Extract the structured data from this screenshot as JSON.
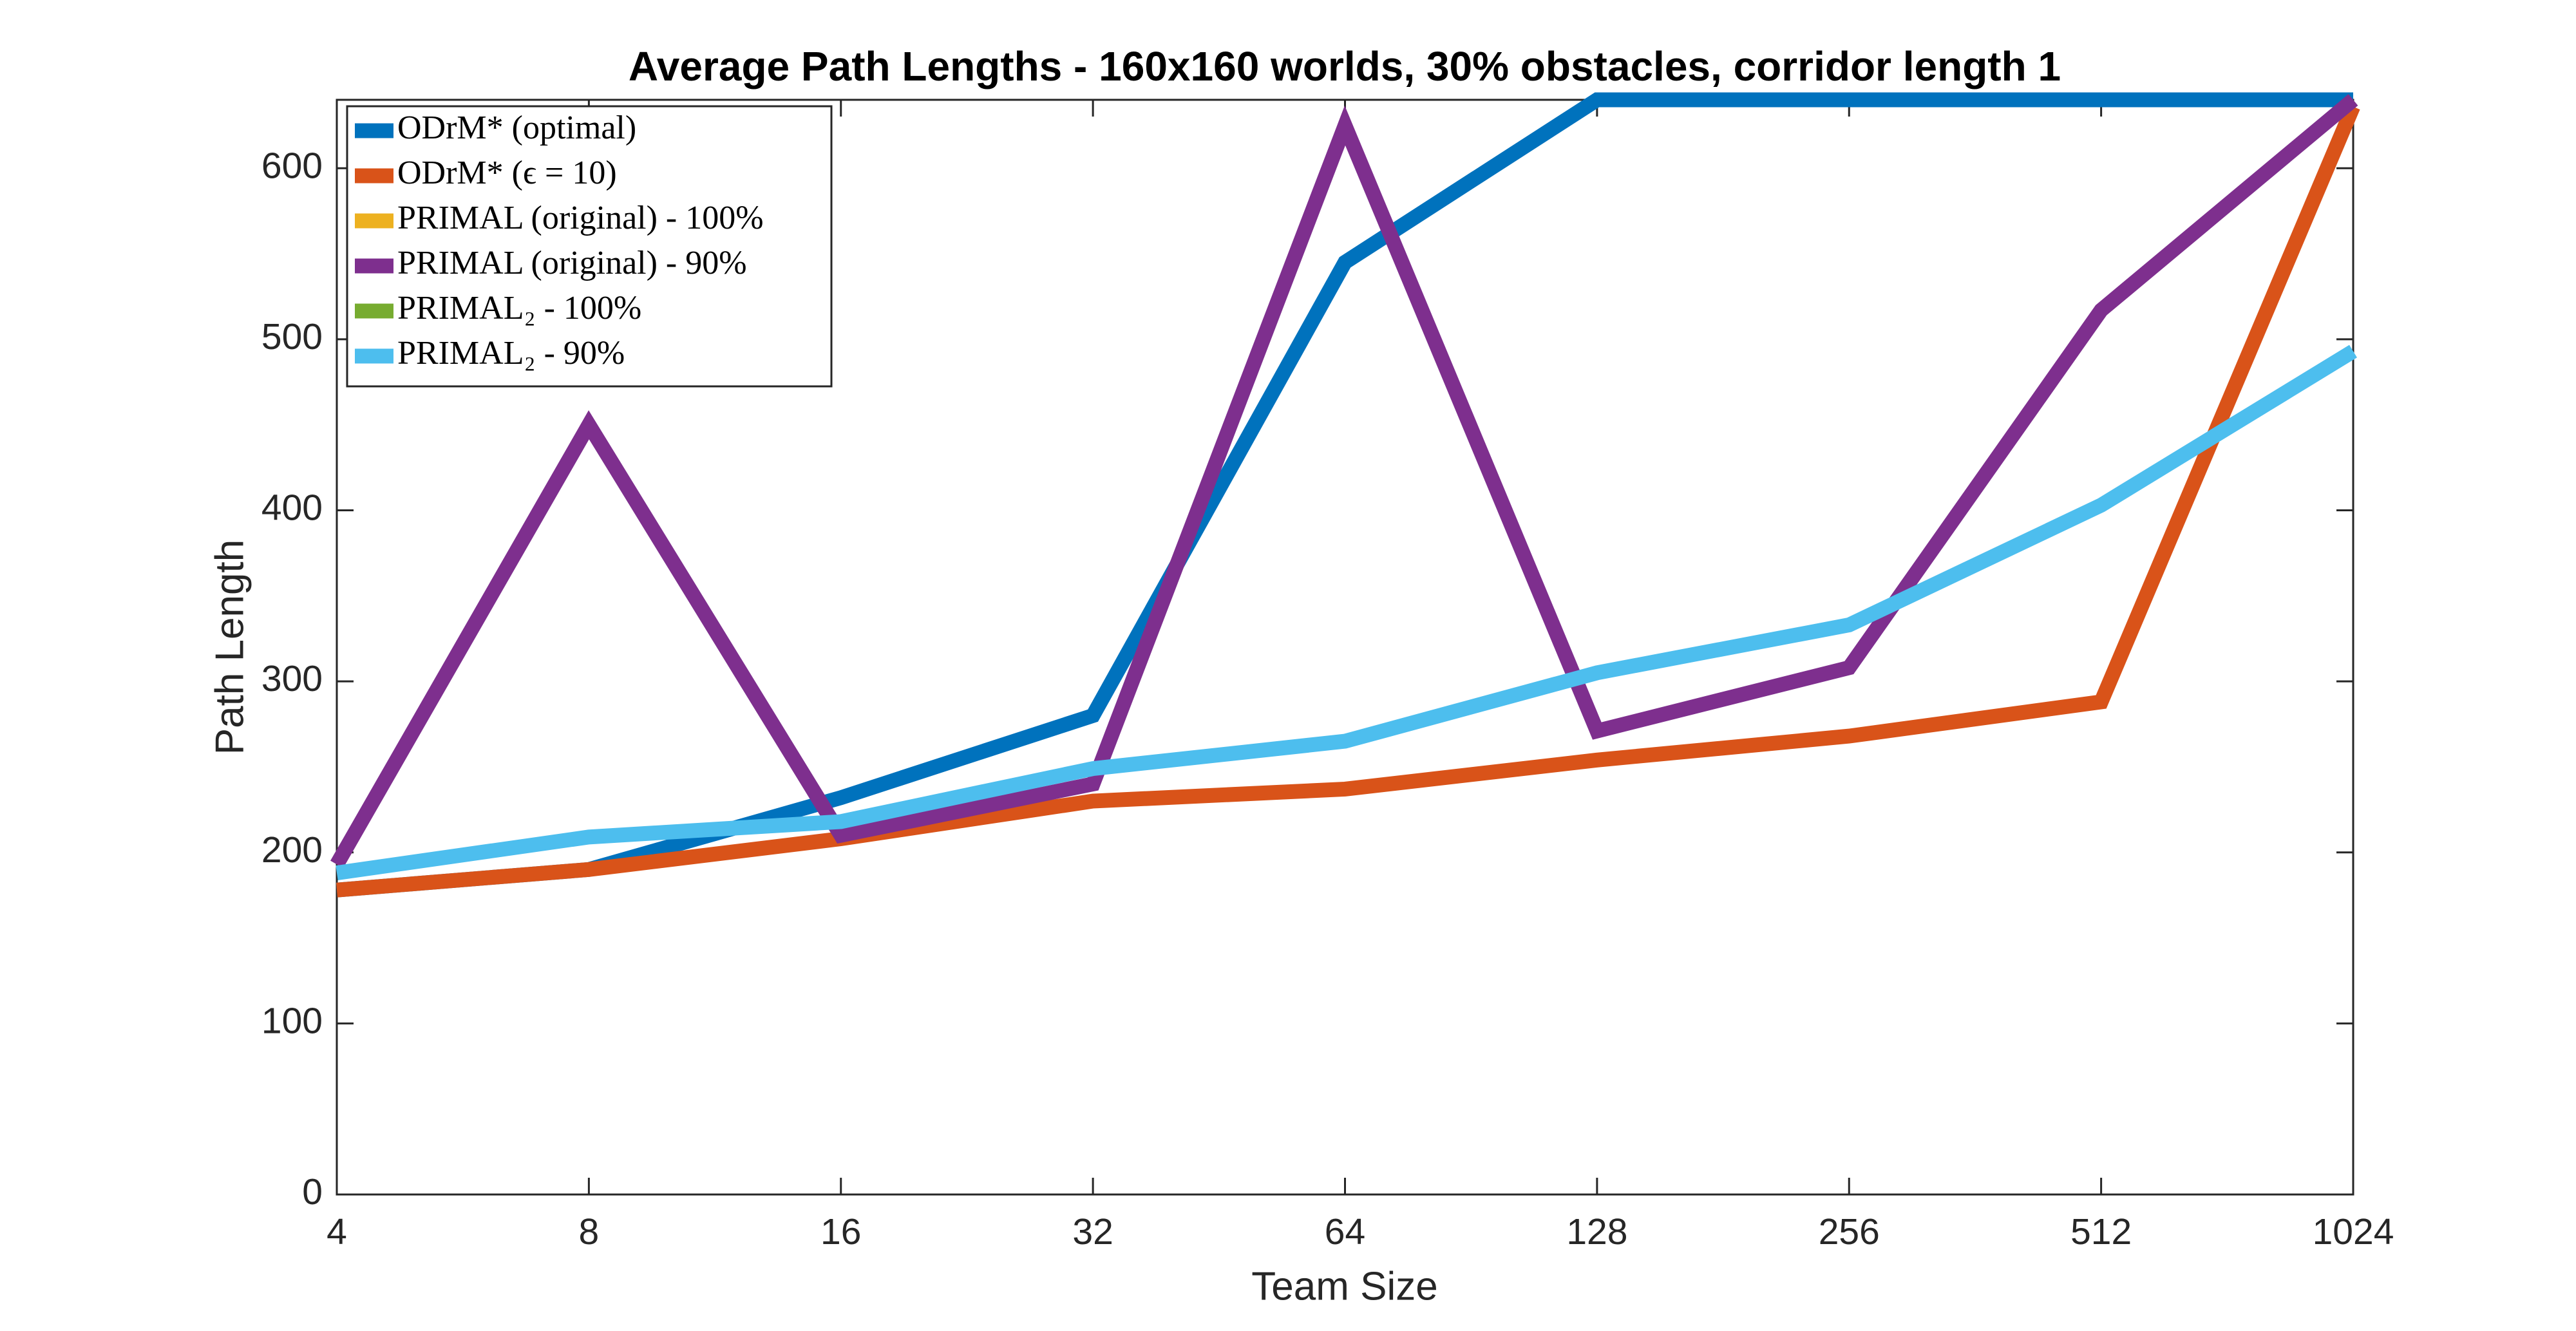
{
  "chart_data": {
    "type": "line",
    "title": "Average Path Lengths - 160x160 worlds, 30% obstacles, corridor length 1",
    "x_label": "Team Size",
    "y_label": "Path Length",
    "x": [
      4,
      8,
      16,
      32,
      64,
      128,
      256,
      512,
      1024
    ],
    "xscale": "log",
    "xlim": [
      4,
      1024
    ],
    "xticks": [
      4,
      8,
      16,
      32,
      64,
      128,
      256,
      512,
      1024
    ],
    "ylim": [
      0,
      640
    ],
    "yticks": [
      0,
      100,
      200,
      300,
      400,
      500,
      600
    ],
    "legend": "upper left",
    "series": [
      {
        "name": "ODrM* (optimal)",
        "color": "#0072bd",
        "values": [
          178,
          190,
          232,
          280,
          545,
          640,
          640,
          640,
          640
        ]
      },
      {
        "name": "ODrM* (ϵ = 10)",
        "color": "#d95319",
        "values": [
          178,
          190,
          208,
          230,
          237,
          254,
          268,
          288,
          636
        ]
      },
      {
        "name": "PRIMAL (original) - 100%",
        "color": "#edb120",
        "values": [
          null,
          null,
          null,
          null,
          null,
          null,
          null,
          null,
          null
        ]
      },
      {
        "name": "PRIMAL (original) - 90%",
        "color": "#7e2f8e",
        "values": [
          193,
          450,
          210,
          240,
          625,
          271,
          308,
          517,
          640
        ]
      },
      {
        "name": "PRIMAL₂ - 100%",
        "color": "#77ac30",
        "values": [
          null,
          null,
          null,
          null,
          null,
          null,
          null,
          null,
          null
        ]
      },
      {
        "name": "PRIMAL₂ - 90%",
        "color": "#4dbeee",
        "values": [
          188,
          209,
          218,
          249,
          265,
          305,
          333,
          403,
          493
        ]
      }
    ]
  }
}
